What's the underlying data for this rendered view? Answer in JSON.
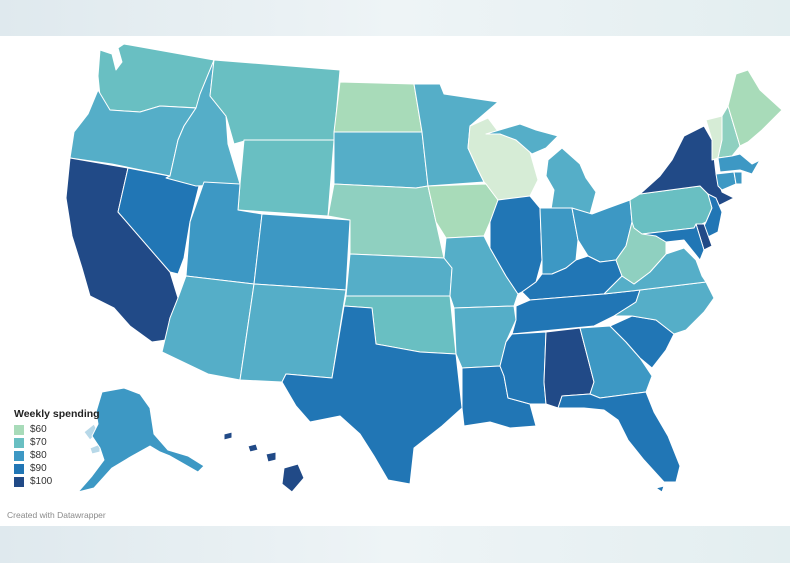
{
  "legend": {
    "title": "Weekly spending",
    "items": [
      {
        "label": "$60",
        "color": "#a8dbb9"
      },
      {
        "label": "$70",
        "color": "#69bfc2"
      },
      {
        "label": "$80",
        "color": "#3d98c4"
      },
      {
        "label": "$90",
        "color": "#2176b5"
      },
      {
        "label": "$100",
        "color": "#214a87"
      }
    ]
  },
  "credit": "Created with Datawrapper",
  "colors": {
    "v60": "#a8dbb9",
    "light": "#d6ecd6",
    "v65": "#8fd0c0",
    "v70": "#69bfc2",
    "v75": "#55aec8",
    "v80": "#3d98c4",
    "v90": "#2176b5",
    "v100": "#214a87",
    "alaska_islands": "#b7d8e8"
  },
  "states": [
    {
      "id": "WA",
      "color": "v70"
    },
    {
      "id": "OR",
      "color": "v75"
    },
    {
      "id": "CA",
      "color": "v100"
    },
    {
      "id": "NV",
      "color": "v90"
    },
    {
      "id": "ID",
      "color": "v75"
    },
    {
      "id": "MT",
      "color": "v70"
    },
    {
      "id": "WY",
      "color": "v70"
    },
    {
      "id": "UT",
      "color": "v80"
    },
    {
      "id": "AZ",
      "color": "v75"
    },
    {
      "id": "CO",
      "color": "v80"
    },
    {
      "id": "NM",
      "color": "v75"
    },
    {
      "id": "ND",
      "color": "v60"
    },
    {
      "id": "SD",
      "color": "v75"
    },
    {
      "id": "NE",
      "color": "v65"
    },
    {
      "id": "KS",
      "color": "v75"
    },
    {
      "id": "OK",
      "color": "v70"
    },
    {
      "id": "TX",
      "color": "v90"
    },
    {
      "id": "MN",
      "color": "v75"
    },
    {
      "id": "IA",
      "color": "v60"
    },
    {
      "id": "MO",
      "color": "v75"
    },
    {
      "id": "AR",
      "color": "v75"
    },
    {
      "id": "LA",
      "color": "v90"
    },
    {
      "id": "WI",
      "color": "light"
    },
    {
      "id": "IL",
      "color": "v90"
    },
    {
      "id": "MI",
      "color": "v75"
    },
    {
      "id": "IN",
      "color": "v80"
    },
    {
      "id": "OH",
      "color": "v80"
    },
    {
      "id": "KY",
      "color": "v90"
    },
    {
      "id": "TN",
      "color": "v90"
    },
    {
      "id": "MS",
      "color": "v90"
    },
    {
      "id": "AL",
      "color": "v100"
    },
    {
      "id": "GA",
      "color": "v80"
    },
    {
      "id": "FL",
      "color": "v90"
    },
    {
      "id": "SC",
      "color": "v90"
    },
    {
      "id": "NC",
      "color": "v75"
    },
    {
      "id": "VA",
      "color": "v75"
    },
    {
      "id": "WV",
      "color": "v65"
    },
    {
      "id": "PA",
      "color": "v70"
    },
    {
      "id": "NY",
      "color": "v100"
    },
    {
      "id": "VT",
      "color": "light"
    },
    {
      "id": "NH",
      "color": "v65"
    },
    {
      "id": "ME",
      "color": "v60"
    },
    {
      "id": "MA",
      "color": "v80"
    },
    {
      "id": "CT",
      "color": "v80"
    },
    {
      "id": "RI",
      "color": "v80"
    },
    {
      "id": "NJ",
      "color": "v90"
    },
    {
      "id": "DE",
      "color": "v100"
    },
    {
      "id": "MD",
      "color": "v90"
    },
    {
      "id": "AK",
      "color": "v80"
    },
    {
      "id": "AK-islands",
      "color": "alaska_islands"
    },
    {
      "id": "HI",
      "color": "v100"
    }
  ]
}
